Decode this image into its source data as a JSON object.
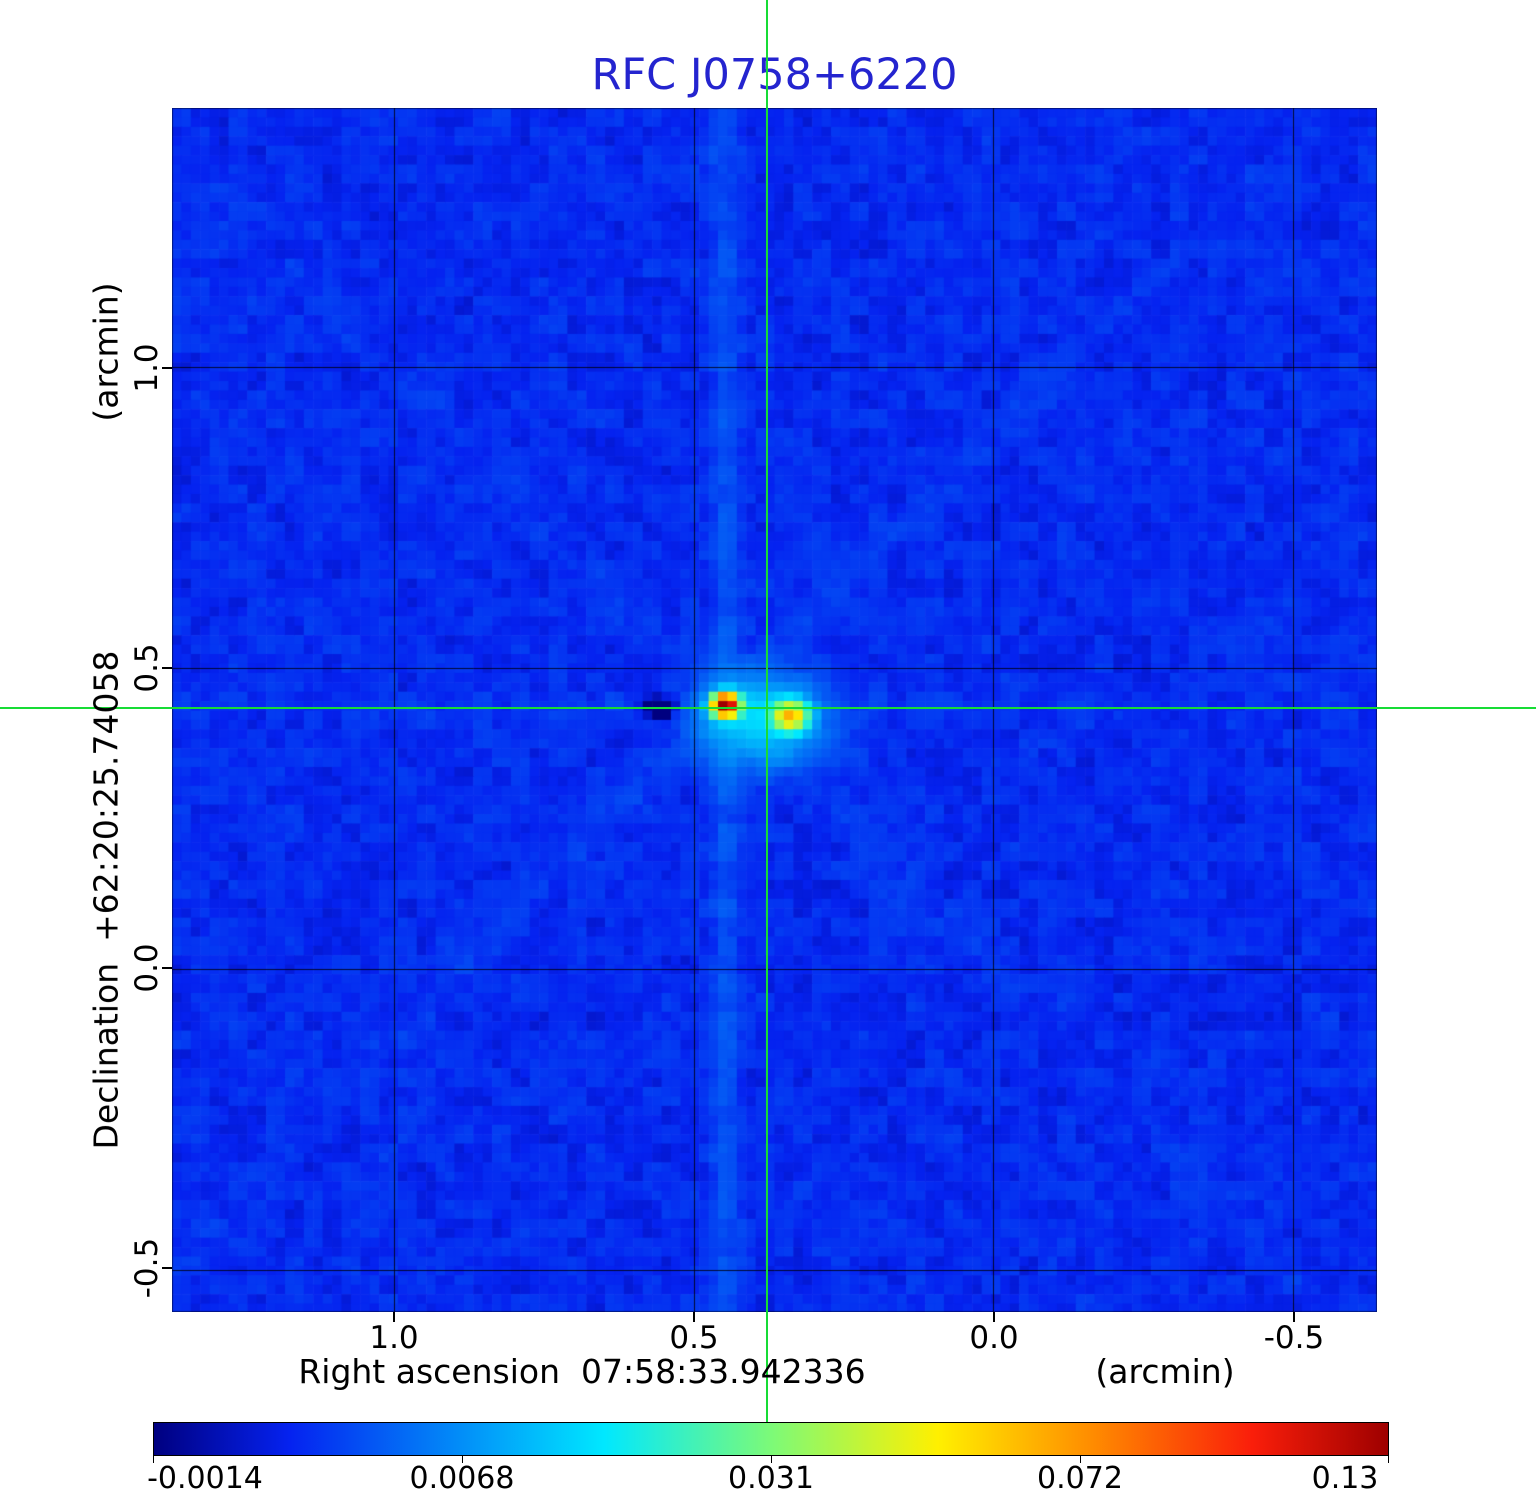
{
  "title": "RFC J0758+6220",
  "title_color": "#2424cf",
  "x_axis": {
    "label": "Right ascension  07:58:33.942336",
    "unit": "(arcmin)",
    "tick_labels": [
      "1.0",
      "0.5",
      "0.0",
      "-0.5"
    ]
  },
  "y_axis": {
    "label": "Declination  +62:20:25.74058",
    "unit": "(arcmin)",
    "tick_labels": [
      "1.0",
      "0.5",
      "0.0",
      "-0.5"
    ]
  },
  "colorbar": {
    "tick_labels": [
      "-0.0014",
      "0.0068",
      "0.031",
      "0.072",
      "0.13"
    ]
  },
  "crosshair_color": "#17dc35",
  "chart_data": {
    "type": "heatmap",
    "title": "RFC J0758+6220",
    "xlabel": "Right ascension 07:58:33.942336 (arcmin)",
    "ylabel": "Declination +62:20:25.74058 (arcmin)",
    "x_ticks": [
      1.0,
      0.5,
      0.0,
      -0.5
    ],
    "y_ticks": [
      1.0,
      0.5,
      0.0,
      -0.5
    ],
    "x_range_arcmin": [
      1.37,
      -0.64
    ],
    "y_range_arcmin": [
      -0.57,
      1.43
    ],
    "grid": true,
    "colormap": "jet",
    "stretch": "sqrt",
    "zlim": [
      -0.0014,
      0.13
    ],
    "colorbar_ticks": [
      -0.0014,
      0.0068,
      0.031,
      0.072,
      0.13
    ],
    "colormap_stops": [
      [
        0.0,
        "#000080"
      ],
      [
        0.11,
        "#0522f0"
      ],
      [
        0.365,
        "#00e8ff"
      ],
      [
        0.5,
        "#7cfa78"
      ],
      [
        0.635,
        "#fff000"
      ],
      [
        0.76,
        "#ff8c00"
      ],
      [
        0.89,
        "#fa1e0a"
      ],
      [
        1.0,
        "#9e0000"
      ]
    ],
    "background_level": 0.0005,
    "noise_rms": 0.0008,
    "crosshair": {
      "ra_arcmin": 0.378,
      "dec_arcmin": 0.433
    },
    "components": [
      {
        "name": "primary-peak",
        "ra_arcmin": 0.447,
        "dec_arcmin": 0.438,
        "peak": 0.135,
        "sigma_ra_arcmin": 0.014,
        "sigma_dec_arcmin": 0.012
      },
      {
        "name": "secondary-peak",
        "ra_arcmin": 0.338,
        "dec_arcmin": 0.42,
        "peak": 0.055,
        "sigma_ra_arcmin": 0.019,
        "sigma_dec_arcmin": 0.016
      },
      {
        "name": "extended-halo",
        "ra_arcmin": 0.385,
        "dec_arcmin": 0.415,
        "peak": 0.013,
        "sigma_ra_arcmin": 0.065,
        "sigma_dec_arcmin": 0.048
      },
      {
        "name": "negative-sidelobe",
        "ra_arcmin": 0.555,
        "dec_arcmin": 0.432,
        "peak": -0.0045,
        "sigma_ra_arcmin": 0.022,
        "sigma_dec_arcmin": 0.014
      }
    ]
  }
}
